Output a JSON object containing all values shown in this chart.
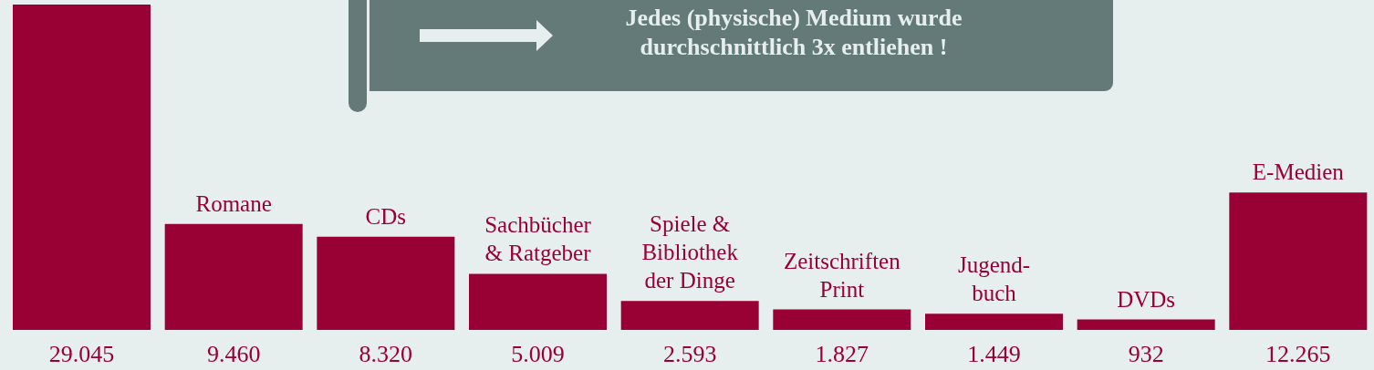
{
  "chart_data": {
    "type": "bar",
    "categories": [
      null,
      "Romane",
      "CDs",
      "Sachbücher\n& Ratgeber",
      "Spiele &\nBibliothek\nder Dinge",
      "Zeitschriften\nPrint",
      "Jugend-\nbuch",
      "DVDs",
      "E-Medien"
    ],
    "values": [
      29045,
      9460,
      8320,
      5009,
      2593,
      1827,
      1449,
      932,
      12265
    ],
    "value_labels": [
      "29.045",
      "9.460",
      "8.320",
      "5.009",
      "2.593",
      "1.827",
      "1.449",
      "932",
      "12.265"
    ],
    "color": "#990033",
    "annotations": [
      "Jedes (physische) Medium wurde durchschnittlich 3x entliehen !"
    ]
  }
}
